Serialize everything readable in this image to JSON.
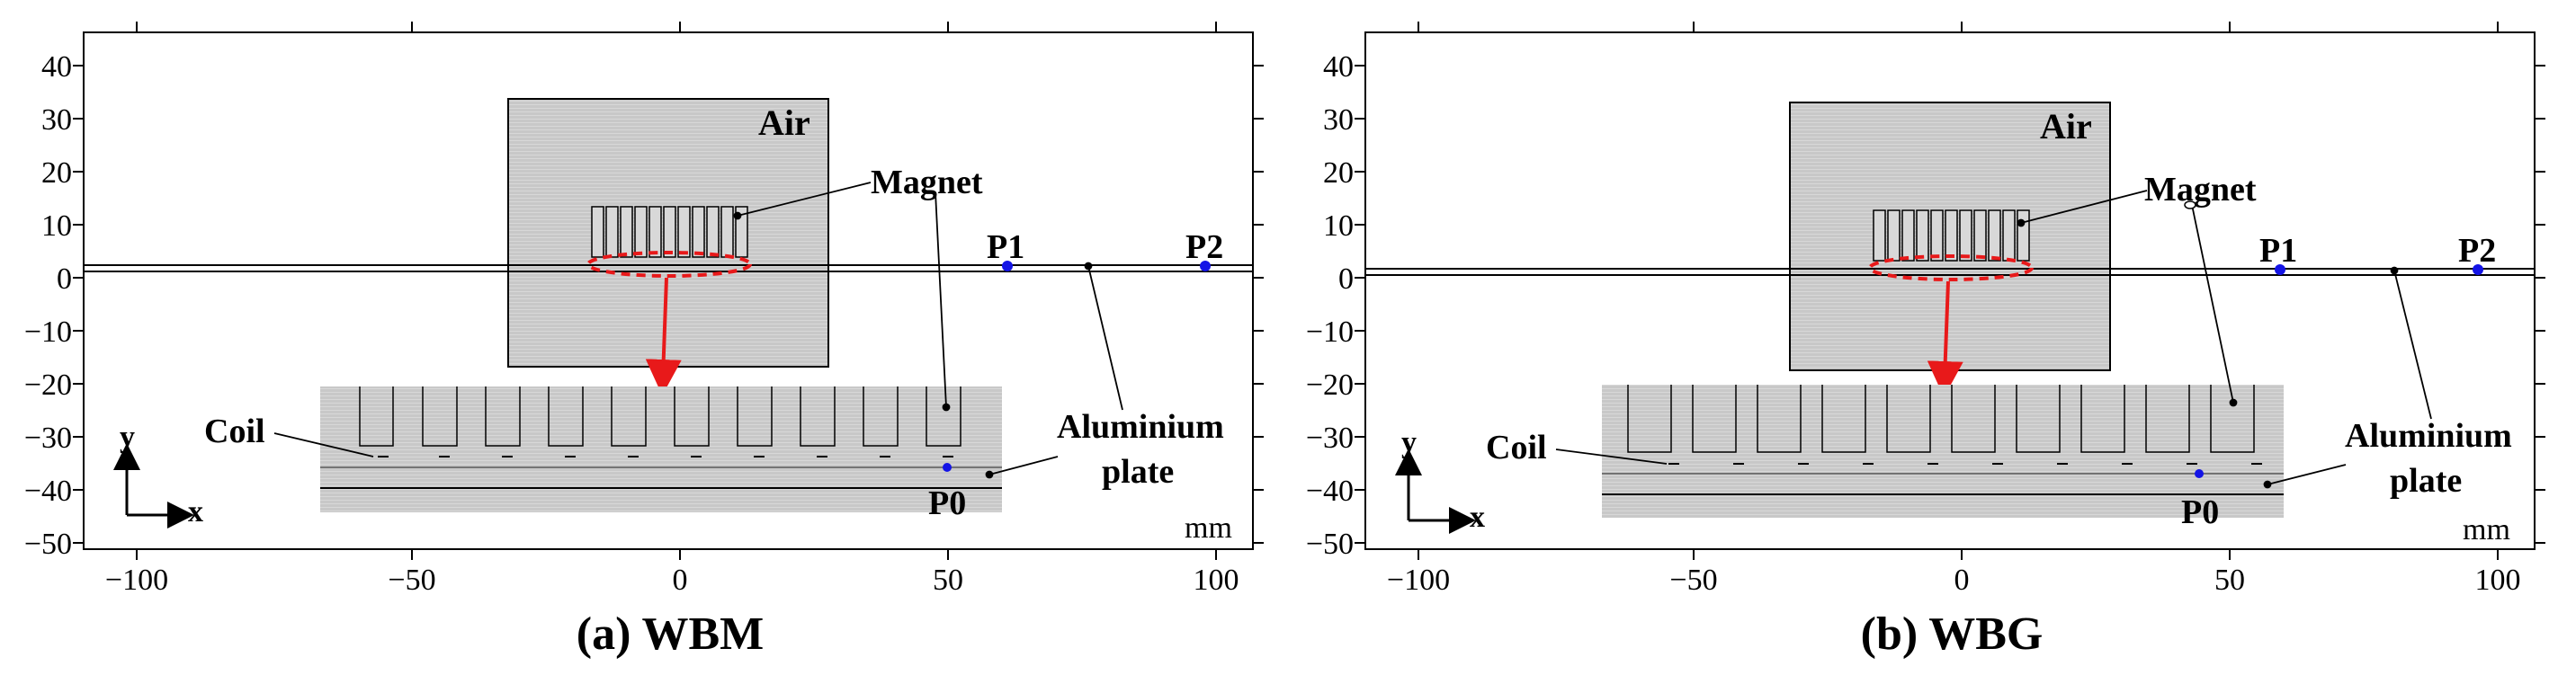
{
  "panels": [
    {
      "caption": "(a) WBM",
      "labels": {
        "air": "Air",
        "magnet": "Magnet",
        "coil": "Coil",
        "aluminium_line1": "Aluminium",
        "aluminium_line2": "plate",
        "p0": "P0",
        "p1": "P1",
        "p2": "P2",
        "unit": "mm",
        "axis_x": "x",
        "axis_y": "y"
      },
      "x_ticks": [
        "−100",
        "−50",
        "0",
        "50",
        "100"
      ],
      "y_ticks": [
        "40",
        "30",
        "20",
        "10",
        "0",
        "−10",
        "−20",
        "−30",
        "−40",
        "−50"
      ]
    },
    {
      "caption": "(b) WBG",
      "labels": {
        "air": "Air",
        "magnet": "Magnet",
        "coil": "Coil",
        "aluminium_line1": "Aluminium",
        "aluminium_line2": "plate",
        "p0": "P0",
        "p1": "P1",
        "p2": "P2",
        "unit": "mm",
        "axis_x": "x",
        "axis_y": "y"
      },
      "x_ticks": [
        "−100",
        "−50",
        "0",
        "50",
        "100"
      ],
      "y_ticks": [
        "40",
        "30",
        "20",
        "10",
        "0",
        "−10",
        "−20",
        "−30",
        "−40",
        "−50"
      ]
    }
  ],
  "colors": {
    "air_fill": "#c8c8c8",
    "inset_fill": "#d0d0d0",
    "highlight": "#e8191a",
    "point_blue": "#1414e6",
    "stroke": "#000000"
  }
}
